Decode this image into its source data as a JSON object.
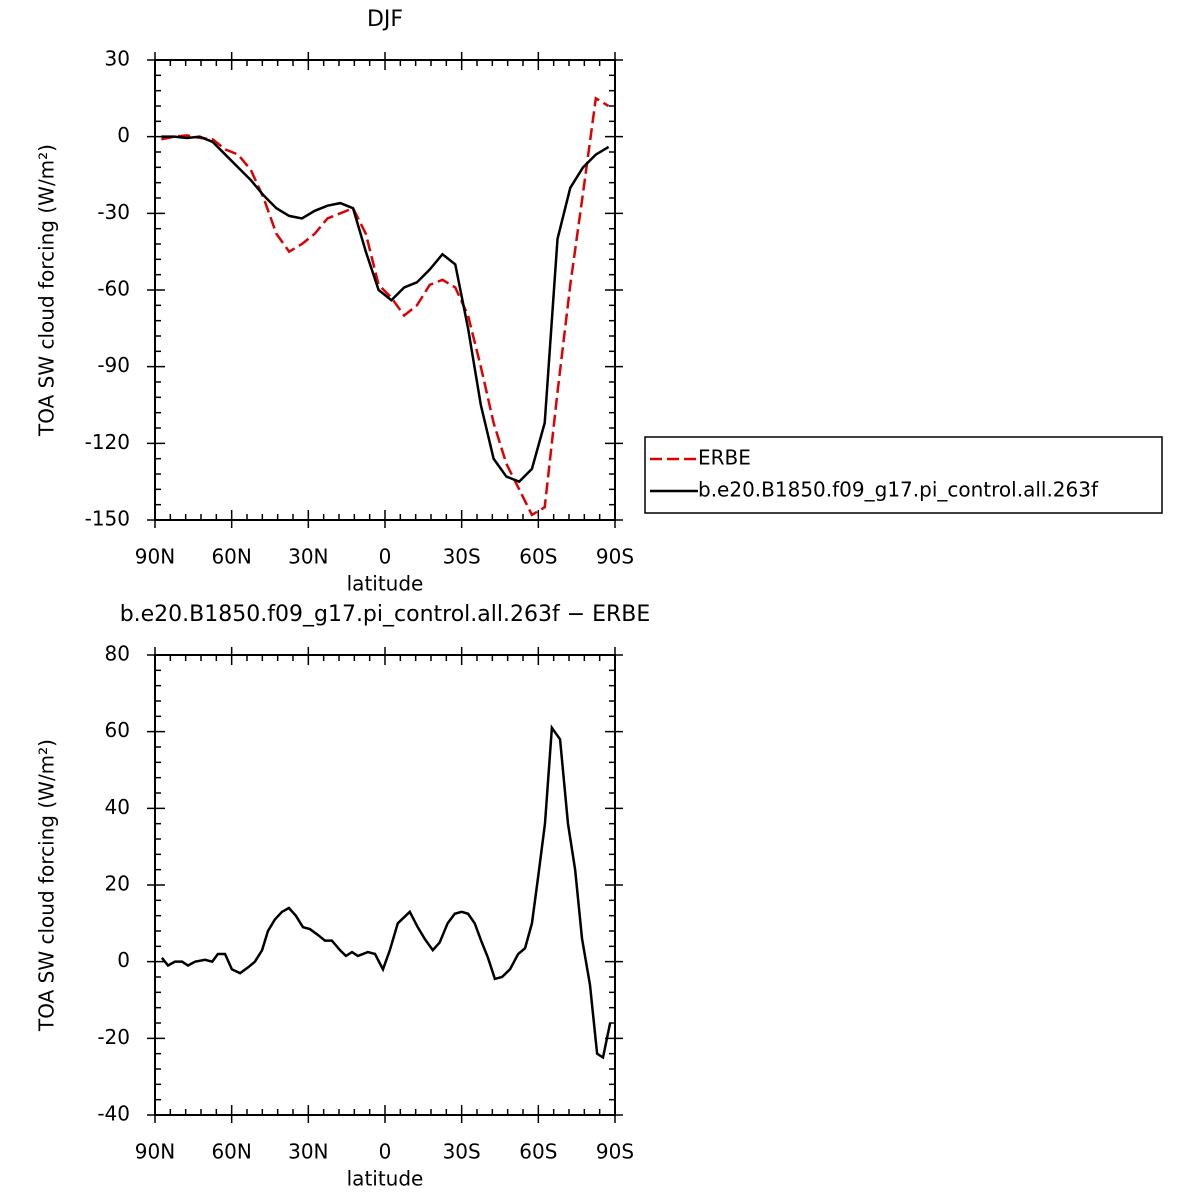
{
  "chart_data": [
    {
      "type": "line",
      "title": "DJF",
      "xlabel": "latitude",
      "ylabel": "TOA SW cloud forcing (W/m²)",
      "x": [
        87.5,
        82.5,
        77.5,
        72.5,
        67.5,
        62.5,
        57.5,
        52.5,
        47.5,
        42.5,
        37.5,
        32.5,
        27.5,
        22.5,
        17.5,
        12.5,
        7.5,
        2.5,
        -2.5,
        -7.5,
        -12.5,
        -17.5,
        -22.5,
        -27.5,
        -32.5,
        -37.5,
        -42.5,
        -47.5,
        -52.5,
        -57.5,
        -62.5,
        -67.5,
        -72.5,
        -77.5,
        -82.5,
        -87.5
      ],
      "series": [
        {
          "name": "ERBE",
          "color": "#e00000",
          "linestyle": "dashed",
          "values": [
            -1,
            0,
            0.5,
            -0.5,
            -1,
            -5,
            -7,
            -13,
            -24,
            -38,
            -45,
            -42,
            -38,
            -32,
            -30,
            -28,
            -38,
            -58,
            -63,
            -70,
            -66,
            -58,
            -56,
            -59,
            -70,
            -90,
            -112,
            -128,
            -138,
            -148,
            -145,
            -100,
            -58,
            -22,
            15,
            12
          ]
        },
        {
          "name": "b.e20.B1850.f09_g17.pi_control.all.263f",
          "color": "#000000",
          "linestyle": "solid",
          "values": [
            0,
            0,
            -0.5,
            0,
            -2,
            -7,
            -12,
            -17,
            -23,
            -28,
            -31,
            -32,
            -29,
            -27,
            -26,
            -28,
            -45,
            -60,
            -64,
            -59,
            -57,
            -52,
            -46,
            -50,
            -75,
            -105,
            -126,
            -133,
            -135,
            -130,
            -112,
            -40,
            -20,
            -12,
            -7,
            -4
          ]
        }
      ],
      "xlim": [
        90,
        -90
      ],
      "xticks": [
        {
          "value": 90,
          "label": "90N"
        },
        {
          "value": 60,
          "label": "60N"
        },
        {
          "value": 30,
          "label": "30N"
        },
        0,
        {
          "value": -30,
          "label": "30S"
        },
        {
          "value": -60,
          "label": "60S"
        },
        {
          "value": -90,
          "label": "90S"
        }
      ],
      "ylim": [
        -150,
        30
      ],
      "yticks": [
        30,
        0,
        -30,
        -60,
        -90,
        -120,
        -150
      ],
      "legend": "right"
    },
    {
      "type": "line",
      "title": "b.e20.B1850.f09_g17.pi_control.all.263f − ERBE",
      "xlabel": "latitude",
      "ylabel": "TOA SW cloud forcing (W/m²)",
      "x": [
        87.3,
        84.9,
        82.2,
        79.4,
        77.1,
        74.3,
        70.4,
        67.6,
        65.4,
        62.6,
        59.9,
        56.7,
        53.6,
        50.9,
        48.1,
        45.8,
        43.1,
        40.3,
        37.6,
        34.9,
        32.1,
        29.4,
        26.3,
        23.5,
        20.8,
        17.6,
        15.3,
        12.9,
        10.6,
        6.7,
        3.9,
        0.8,
        -1.9,
        -5.0,
        -9.7,
        -12.8,
        -15.5,
        -18.7,
        -21.4,
        -24.5,
        -27.3,
        -30.0,
        -32.5,
        -35.1,
        -37.9,
        -40.3,
        -43.0,
        -45.8,
        -48.9,
        -52.1,
        -54.8,
        -57.5,
        -59.9,
        -62.6,
        -65.3,
        -68.5,
        -71.6,
        -74.4,
        -77.1,
        -80.2,
        -83.0,
        -85.3,
        -88.1
      ],
      "series": [
        {
          "color": "#000000",
          "linestyle": "solid",
          "values": [
            1,
            -1,
            0,
            0,
            -1,
            0,
            0.5,
            0,
            2,
            2,
            -2,
            -3,
            -1.5,
            0,
            3,
            8,
            11,
            13,
            14,
            12,
            9,
            8.5,
            7,
            5.5,
            5.5,
            3,
            1.5,
            2.5,
            1.5,
            2.5,
            2,
            -2,
            3,
            10,
            13,
            9,
            6,
            3,
            5,
            10,
            12.5,
            13,
            12.5,
            10,
            5,
            1,
            -4.5,
            -4,
            -2,
            2,
            3.5,
            10,
            22,
            36,
            61,
            58,
            36,
            24,
            6,
            -6,
            -24,
            -25,
            -16
          ]
        }
      ],
      "xlim": [
        90,
        -90
      ],
      "xticks": [
        {
          "value": 90,
          "label": "90N"
        },
        {
          "value": 60,
          "label": "60N"
        },
        {
          "value": 30,
          "label": "30N"
        },
        0,
        {
          "value": -30,
          "label": "30S"
        },
        {
          "value": -60,
          "label": "60S"
        },
        {
          "value": -90,
          "label": "90S"
        }
      ],
      "ylim": [
        -40,
        80
      ],
      "yticks": [
        80,
        60,
        40,
        20,
        0,
        -20,
        -40
      ]
    }
  ]
}
